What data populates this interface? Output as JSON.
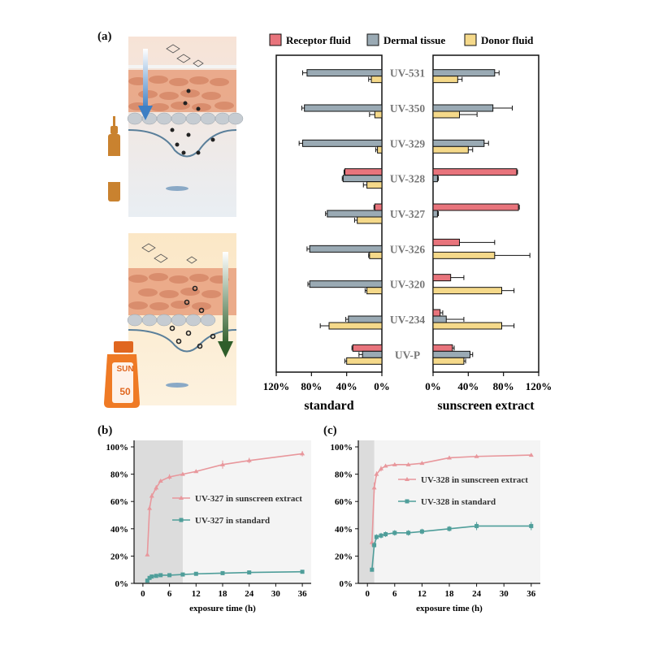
{
  "panels": {
    "a": "(a)",
    "b": "(b)",
    "c": "(c)"
  },
  "illustration": {
    "sun_label": "SUN",
    "spf": "50"
  },
  "colors": {
    "receptor": "#e8747c",
    "dermal": "#9aaab4",
    "donor": "#f5d98a",
    "pink_line": "#e8979c",
    "teal_line": "#4f9e9a",
    "shade_dark": "#dcdcdc",
    "shade_light": "#f4f4f4"
  },
  "chart_data": [
    {
      "type": "bar",
      "orientation": "horizontal",
      "legend": [
        "Receptor fluid",
        "Dermal tissue",
        "Donor fluid"
      ],
      "legend_position": "top",
      "categories": [
        "UV-531",
        "UV-350",
        "UV-329",
        "UV-328",
        "UV-327",
        "UV-326",
        "UV-320",
        "UV-234",
        "UV-P"
      ],
      "left": {
        "xlabel": "standard",
        "ticks": [
          "120%",
          "80%",
          "40%",
          "0%"
        ],
        "xlim": [
          120,
          0
        ],
        "series": [
          {
            "name": "Receptor fluid",
            "values": [
              0,
              0,
              0,
              42,
              8,
              0,
              0,
              0,
              33
            ],
            "errors": [
              0,
              0,
              0,
              1,
              1,
              0,
              0,
              0,
              1
            ]
          },
          {
            "name": "Dermal tissue",
            "values": [
              85,
              88,
              90,
              44,
              62,
              82,
              82,
              38,
              22
            ],
            "errors": [
              5,
              3,
              4,
              1,
              2,
              3,
              2,
              3,
              4
            ]
          },
          {
            "name": "Donor fluid",
            "values": [
              12,
              8,
              5,
              17,
              28,
              14,
              17,
              60,
              40
            ],
            "errors": [
              3,
              6,
              2,
              4,
              3,
              1,
              2,
              10,
              2
            ]
          }
        ]
      },
      "right": {
        "xlabel": "sunscreen extract",
        "ticks": [
          "0%",
          "40%",
          "80%",
          "120%"
        ],
        "xlim": [
          0,
          120
        ],
        "series": [
          {
            "name": "Receptor fluid",
            "values": [
              0,
              0,
              0,
              95,
              97,
              30,
              20,
              8,
              22
            ],
            "errors": [
              0,
              0,
              0,
              1,
              1,
              40,
              15,
              3,
              2
            ]
          },
          {
            "name": "Dermal tissue",
            "values": [
              70,
              68,
              58,
              5,
              5,
              0,
              0,
              15,
              42
            ],
            "errors": [
              5,
              22,
              5,
              1,
              1,
              0,
              0,
              20,
              3
            ]
          },
          {
            "name": "Donor fluid",
            "values": [
              28,
              30,
              40,
              0,
              0,
              70,
              78,
              78,
              35
            ],
            "errors": [
              5,
              20,
              5,
              0,
              0,
              40,
              14,
              14,
              2
            ]
          }
        ]
      }
    },
    {
      "type": "line",
      "xlabel": "exposure time (h)",
      "ylabel": "",
      "xticks": [
        0,
        6,
        12,
        18,
        24,
        30,
        36
      ],
      "yticks": [
        "0%",
        "20%",
        "40%",
        "60%",
        "80%",
        "100%"
      ],
      "xlim": [
        -2,
        38
      ],
      "ylim": [
        0,
        100
      ],
      "shaded_x": [
        -2,
        9
      ],
      "series": [
        {
          "name": "UV-327 in sunscreen extract",
          "x": [
            1,
            1.5,
            2,
            3,
            4,
            6,
            9,
            12,
            18,
            24,
            36
          ],
          "y": [
            21,
            55,
            64,
            70,
            75,
            78,
            80,
            82,
            87,
            90,
            95
          ],
          "errors": [
            1,
            2,
            2,
            2,
            1,
            2,
            1,
            1,
            3,
            2,
            2
          ]
        },
        {
          "name": "UV-327 in standard",
          "x": [
            1,
            1.5,
            2,
            3,
            4,
            6,
            9,
            12,
            18,
            24,
            36
          ],
          "y": [
            2,
            4,
            5,
            5.5,
            6,
            6,
            6.5,
            7,
            7.5,
            8,
            8.5
          ],
          "errors": [
            0.5,
            0.5,
            0.5,
            0.5,
            0.5,
            0.5,
            0.5,
            0.5,
            0.5,
            0.5,
            0.5
          ]
        }
      ]
    },
    {
      "type": "line",
      "xlabel": "exposure time (h)",
      "ylabel": "",
      "xticks": [
        0,
        6,
        12,
        18,
        24,
        30,
        36
      ],
      "yticks": [
        "0%",
        "20%",
        "40%",
        "60%",
        "80%",
        "100%"
      ],
      "xlim": [
        -2,
        38
      ],
      "ylim": [
        0,
        100
      ],
      "shaded_x": [
        -2,
        1.5
      ],
      "series": [
        {
          "name": "UV-328 in sunscreen extract",
          "x": [
            1,
            1.5,
            2,
            3,
            4,
            6,
            9,
            12,
            18,
            24,
            36
          ],
          "y": [
            30,
            70,
            80,
            84,
            86,
            87,
            87,
            88,
            92,
            93,
            94
          ],
          "errors": [
            3,
            4,
            2,
            2,
            1,
            1,
            1,
            1,
            1,
            1,
            1
          ]
        },
        {
          "name": "UV-328 in standard",
          "x": [
            1,
            1.5,
            2,
            3,
            4,
            6,
            9,
            12,
            18,
            24,
            36
          ],
          "y": [
            10,
            28,
            34,
            35,
            36,
            37,
            37,
            38,
            40,
            42,
            42
          ],
          "errors": [
            1,
            2,
            2,
            2,
            2,
            2,
            2,
            2,
            2,
            3,
            3
          ]
        }
      ]
    }
  ]
}
